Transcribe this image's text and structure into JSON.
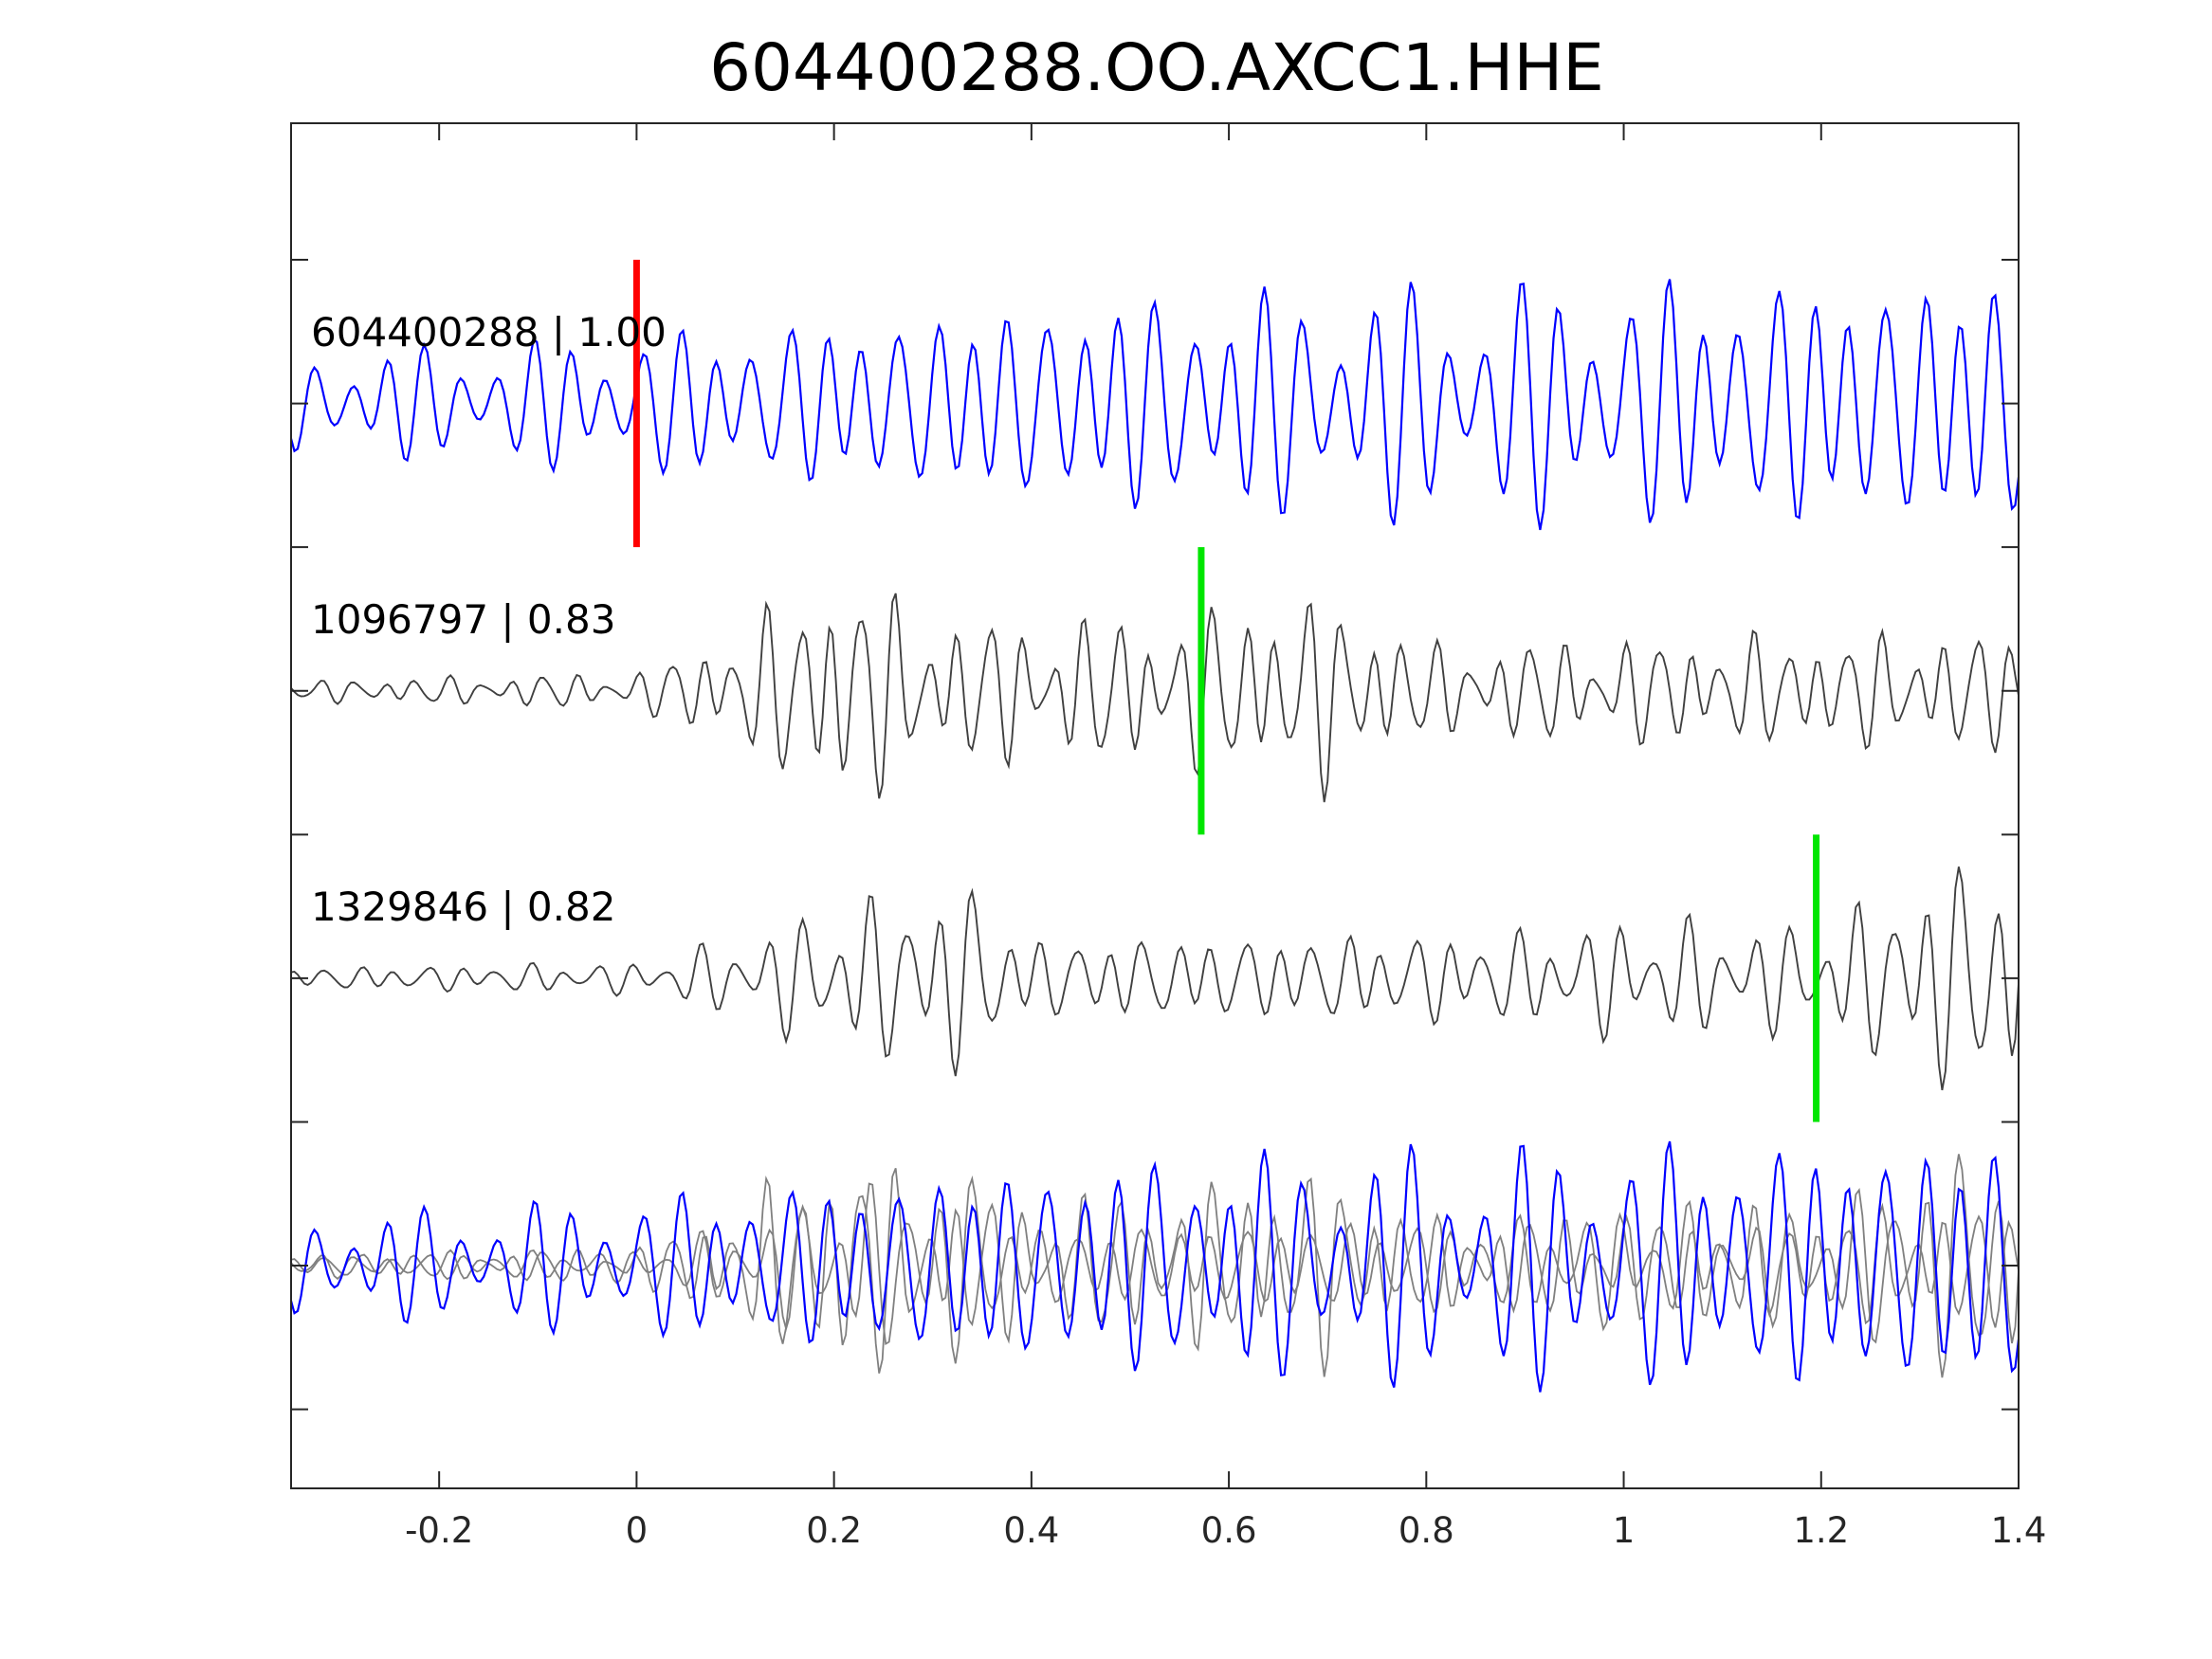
{
  "chart_data": {
    "type": "line",
    "title": "604400288.OO.AXCC1.HHE",
    "xlabel": "",
    "ylabel": "",
    "xlim": [
      -0.35,
      1.4
    ],
    "x_ticks": [
      -0.2,
      0,
      0.2,
      0.4,
      0.6,
      0.8,
      1,
      1.2,
      1.4
    ],
    "x_tick_labels": [
      "-0.2",
      "0",
      "0.2",
      "0.4",
      "0.6",
      "0.8",
      "1",
      "1.2",
      "1.4"
    ],
    "y_ticks_visible": false,
    "grid": false,
    "legend": "none",
    "traces": [
      {
        "id": "604400288",
        "label": "604400288 | 1.00",
        "correlation": 1.0,
        "offset": 0,
        "color": "#0000ff",
        "pick_time": 0.0,
        "pick_color": "#ff0000",
        "envelope": [
          [
            -0.35,
            0.35
          ],
          [
            0.0,
            0.5
          ],
          [
            0.2,
            0.62
          ],
          [
            0.5,
            0.8
          ],
          [
            1.4,
            0.95
          ]
        ],
        "components": [
          [
            27,
            1.0,
            0.3
          ],
          [
            19,
            0.35,
            1.7
          ],
          [
            34,
            0.25,
            4.1
          ]
        ]
      },
      {
        "id": "1096797",
        "label": "1096797 | 0.83",
        "correlation": 0.83,
        "offset": -2,
        "color": "#404040",
        "pick_time": 0.572,
        "pick_color": "#00e600",
        "envelope": [
          [
            -0.35,
            0.08
          ],
          [
            0.0,
            0.14
          ],
          [
            0.1,
            0.45
          ],
          [
            0.21,
            0.95
          ],
          [
            0.3,
            0.55
          ],
          [
            0.5,
            0.55
          ],
          [
            0.7,
            0.75
          ],
          [
            0.8,
            0.35
          ],
          [
            1.0,
            0.4
          ],
          [
            1.4,
            0.45
          ]
        ],
        "components": [
          [
            31,
            1.0,
            0.9
          ],
          [
            22,
            0.45,
            2.4
          ],
          [
            47,
            0.3,
            0.2
          ]
        ]
      },
      {
        "id": "1329846",
        "label": "1329846 | 0.82",
        "correlation": 0.82,
        "offset": -4,
        "color": "#404040",
        "pick_time": 1.195,
        "pick_color": "#00e600",
        "envelope": [
          [
            -0.35,
            0.08
          ],
          [
            0.0,
            0.12
          ],
          [
            0.1,
            0.3
          ],
          [
            0.2,
            0.55
          ],
          [
            0.33,
            0.75
          ],
          [
            0.4,
            0.3
          ],
          [
            0.9,
            0.35
          ],
          [
            1.0,
            0.45
          ],
          [
            1.2,
            0.4
          ],
          [
            1.3,
            0.8
          ],
          [
            1.4,
            1.0
          ]
        ],
        "components": [
          [
            29,
            1.0,
            2.2
          ],
          [
            18,
            0.4,
            0.6
          ],
          [
            41,
            0.3,
            3.3
          ]
        ]
      }
    ],
    "overlay": {
      "offset": -6,
      "description_source": "all three traces superimposed",
      "primary_color": "#0000ff",
      "secondary_color": "#808080"
    },
    "ylim": [
      -7.55,
      1.95
    ]
  }
}
